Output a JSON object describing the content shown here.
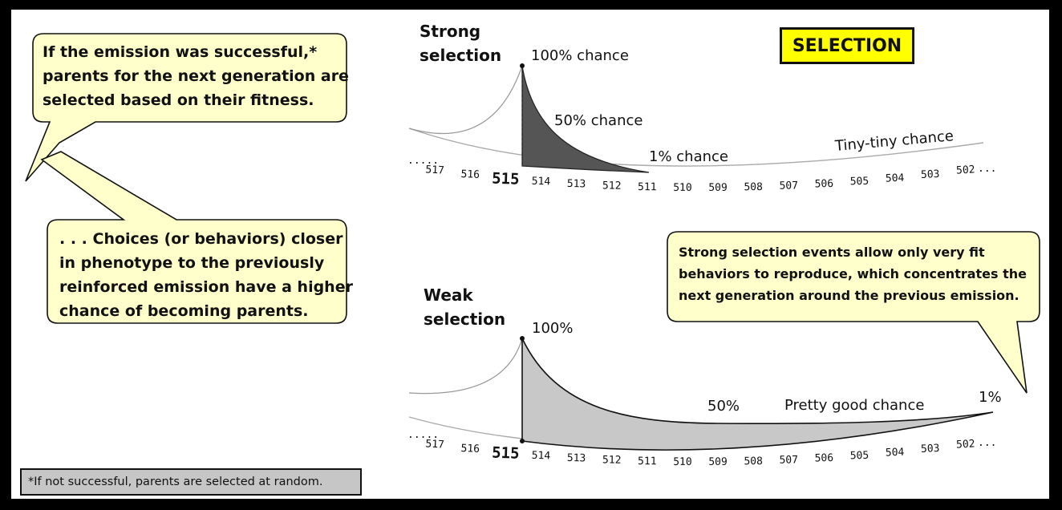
{
  "badge": "SELECTION",
  "bubbles": {
    "top_left": [
      "If the emission was successful,*",
      "parents for the next generation are",
      "selected based on their fitness."
    ],
    "mid_left": [
      ". . . Choices (or behaviors) closer",
      "in phenotype to the previously",
      "reinforced emission  have a higher",
      "chance of becoming parents."
    ],
    "right": [
      "Strong selection events allow only very fit",
      "behaviors to reproduce, which concentrates the",
      "next generation around the previous emission."
    ]
  },
  "footnote": "*If not successful, parents are selected at random.",
  "strong": {
    "title": [
      "Strong",
      "selection"
    ],
    "labels": {
      "peak": "100% chance",
      "half": "50% chance",
      "one": "1% chance",
      "tiny": "Tiny-tiny chance"
    }
  },
  "weak": {
    "title": [
      "Weak",
      "selection"
    ],
    "labels": {
      "peak": "100%",
      "half": "50%",
      "good": "Pretty good chance",
      "one": "1%"
    }
  },
  "axis": {
    "lead": ".....",
    "numbers": [
      "517",
      "516",
      "515",
      "514",
      "513",
      "512",
      "511",
      "510",
      "509",
      "508",
      "507",
      "506",
      "505",
      "504",
      "503",
      "502"
    ],
    "trail": "...",
    "highlight": "515"
  },
  "colors": {
    "bubble_fill": "#ffffcc",
    "badge_fill": "#ffff00",
    "strong_fill": "#555555",
    "weak_fill": "#c8c8c8",
    "footnote_fill": "#c6c6c6"
  }
}
